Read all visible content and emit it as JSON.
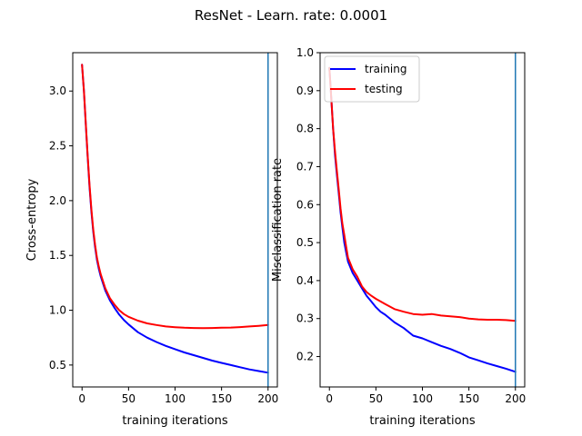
{
  "suptitle": "ResNet - Learn. rate: 0.0001",
  "chart_data": [
    {
      "type": "line",
      "title": "",
      "xlabel": "training iterations",
      "ylabel": "Cross-entropy",
      "xlim": [
        -10,
        210
      ],
      "ylim": [
        0.3,
        3.35
      ],
      "xticks": [
        "0",
        "50",
        "100",
        "150",
        "200"
      ],
      "yticks": [
        "0.5",
        "1.0",
        "1.5",
        "2.0",
        "2.5",
        "3.0"
      ],
      "grid": false,
      "vline_x": 200,
      "series": [
        {
          "color": "#0000ff",
          "x": [
            0,
            2,
            4,
            6,
            8,
            10,
            12,
            14,
            16,
            18,
            20,
            25,
            30,
            35,
            40,
            45,
            50,
            60,
            70,
            80,
            90,
            100,
            110,
            120,
            130,
            140,
            150,
            160,
            170,
            180,
            190,
            200
          ],
          "y": [
            3.24,
            3.0,
            2.7,
            2.4,
            2.13,
            1.9,
            1.72,
            1.58,
            1.46,
            1.38,
            1.31,
            1.18,
            1.09,
            1.02,
            0.96,
            0.91,
            0.87,
            0.8,
            0.75,
            0.71,
            0.675,
            0.645,
            0.615,
            0.59,
            0.565,
            0.54,
            0.52,
            0.5,
            0.48,
            0.46,
            0.445,
            0.43
          ]
        },
        {
          "color": "#ff0000",
          "x": [
            0,
            2,
            4,
            6,
            8,
            10,
            12,
            14,
            16,
            18,
            20,
            25,
            30,
            35,
            40,
            45,
            50,
            60,
            70,
            80,
            90,
            100,
            110,
            120,
            130,
            140,
            150,
            160,
            170,
            180,
            190,
            200
          ],
          "y": [
            3.24,
            3.0,
            2.71,
            2.41,
            2.15,
            1.92,
            1.74,
            1.6,
            1.48,
            1.4,
            1.33,
            1.2,
            1.11,
            1.05,
            1.0,
            0.965,
            0.94,
            0.905,
            0.88,
            0.865,
            0.852,
            0.845,
            0.84,
            0.838,
            0.836,
            0.838,
            0.84,
            0.842,
            0.846,
            0.852,
            0.858,
            0.865
          ]
        }
      ]
    },
    {
      "type": "line",
      "title": "",
      "xlabel": "training iterations",
      "ylabel": "Misclassification rate",
      "xlim": [
        -10,
        210
      ],
      "ylim": [
        0.12,
        1.0
      ],
      "xticks": [
        "0",
        "50",
        "100",
        "150",
        "200"
      ],
      "yticks": [
        "0.2",
        "0.3",
        "0.4",
        "0.5",
        "0.6",
        "0.7",
        "0.8",
        "0.9",
        "1.0"
      ],
      "grid": false,
      "legend": "top-left",
      "vline_x": 200,
      "series": [
        {
          "name": "training",
          "color": "#0000ff",
          "x": [
            0,
            2,
            4,
            6,
            8,
            10,
            12,
            14,
            16,
            18,
            20,
            25,
            30,
            35,
            40,
            45,
            50,
            55,
            60,
            70,
            80,
            90,
            100,
            110,
            120,
            130,
            140,
            150,
            160,
            170,
            180,
            190,
            200
          ],
          "y": [
            0.96,
            0.88,
            0.8,
            0.73,
            0.68,
            0.63,
            0.58,
            0.54,
            0.5,
            0.475,
            0.45,
            0.42,
            0.4,
            0.38,
            0.36,
            0.345,
            0.33,
            0.318,
            0.31,
            0.29,
            0.275,
            0.255,
            0.248,
            0.238,
            0.228,
            0.22,
            0.21,
            0.198,
            0.19,
            0.182,
            0.175,
            0.168,
            0.16
          ]
        },
        {
          "name": "testing",
          "color": "#ff0000",
          "x": [
            0,
            2,
            4,
            6,
            8,
            10,
            12,
            14,
            16,
            18,
            20,
            25,
            30,
            35,
            40,
            45,
            50,
            55,
            60,
            70,
            80,
            90,
            100,
            110,
            120,
            130,
            140,
            150,
            160,
            170,
            180,
            190,
            200
          ],
          "y": [
            0.96,
            0.88,
            0.8,
            0.74,
            0.69,
            0.64,
            0.59,
            0.55,
            0.52,
            0.49,
            0.46,
            0.43,
            0.41,
            0.385,
            0.37,
            0.36,
            0.352,
            0.345,
            0.338,
            0.325,
            0.318,
            0.312,
            0.31,
            0.312,
            0.308,
            0.306,
            0.304,
            0.3,
            0.298,
            0.297,
            0.297,
            0.296,
            0.294
          ]
        }
      ]
    }
  ]
}
